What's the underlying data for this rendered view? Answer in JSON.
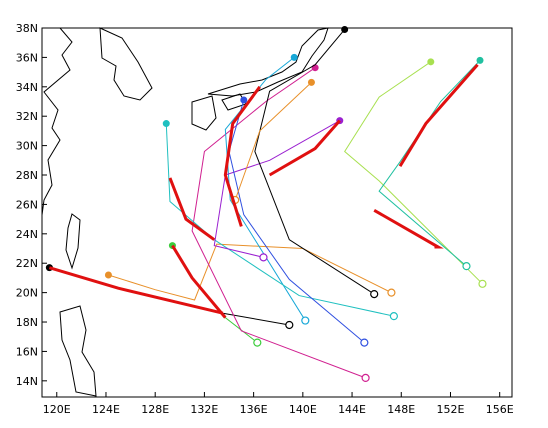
{
  "chart_data": {
    "type": "map",
    "xlim": [
      118.8,
      157
    ],
    "ylim": [
      12.9,
      38
    ],
    "xticks": [
      {
        "value": 120,
        "label": "120E"
      },
      {
        "value": 124,
        "label": "124E"
      },
      {
        "value": 128,
        "label": "128E"
      },
      {
        "value": 132,
        "label": "132E"
      },
      {
        "value": 136,
        "label": "136E"
      },
      {
        "value": 140,
        "label": "140E"
      },
      {
        "value": 144,
        "label": "144E"
      },
      {
        "value": 148,
        "label": "148E"
      },
      {
        "value": 152,
        "label": "152E"
      },
      {
        "value": 156,
        "label": "156E"
      }
    ],
    "yticks": [
      {
        "value": 14,
        "label": "14N"
      },
      {
        "value": 16,
        "label": "16N"
      },
      {
        "value": 18,
        "label": "18N"
      },
      {
        "value": 20,
        "label": "20N"
      },
      {
        "value": 22,
        "label": "22N"
      },
      {
        "value": 24,
        "label": "24N"
      },
      {
        "value": 26,
        "label": "26N"
      },
      {
        "value": 28,
        "label": "28N"
      },
      {
        "value": 30,
        "label": "30N"
      },
      {
        "value": 32,
        "label": "32N"
      },
      {
        "value": 34,
        "label": "34N"
      },
      {
        "value": 36,
        "label": "36N"
      },
      {
        "value": 38,
        "label": "38N"
      }
    ],
    "series": [
      {
        "color": "#000000",
        "x": [
          138.9,
          133.5,
          130,
          125,
          119.4
        ],
        "y": [
          17.8,
          18.6,
          19.3,
          20.3,
          21.7
        ]
      },
      {
        "color": "#e8902a",
        "x": [
          147.2,
          140,
          133,
          131.2,
          128,
          124.2
        ],
        "y": [
          20.0,
          23.0,
          23.3,
          19.5,
          20.2,
          21.2
        ]
      },
      {
        "color": "#3ccc3c",
        "x": [
          136.3,
          133.7,
          131,
          129.4
        ],
        "y": [
          16.6,
          18.3,
          21.0,
          23.2
        ]
      },
      {
        "color": "#d02090",
        "x": [
          145.1,
          135,
          131,
          132,
          137,
          141
        ],
        "y": [
          14.2,
          17.4,
          24.2,
          29.6,
          33.0,
          35.3
        ]
      },
      {
        "color": "#18a8d8",
        "x": [
          140.2,
          134.1,
          133.7,
          137,
          139.3
        ],
        "y": [
          18.1,
          26.3,
          31.1,
          34.5,
          36.0
        ]
      },
      {
        "color": "#20c0c0",
        "x": [
          147.4,
          139.7,
          132.8,
          129.2,
          128.9
        ],
        "y": [
          18.4,
          19.8,
          23.6,
          26.2,
          31.5
        ]
      },
      {
        "color": "#9a20d0",
        "x": [
          136.8,
          132.8,
          133.7,
          137.3,
          143
        ],
        "y": [
          22.4,
          23.2,
          28.0,
          29.0,
          31.7
        ]
      },
      {
        "color": "#3050e0",
        "x": [
          145,
          138.9,
          135.2,
          134,
          135.2
        ],
        "y": [
          16.6,
          20.9,
          25.3,
          29.6,
          33.1
        ]
      },
      {
        "color": "#000000",
        "x": [
          145.8,
          138.9,
          136.1,
          137.3,
          141,
          143.4
        ],
        "y": [
          19.9,
          23.6,
          29.6,
          33.7,
          35.5,
          37.9
        ]
      },
      {
        "color": "#e8902a",
        "x": [
          134.5,
          136.5,
          140.7
        ],
        "y": [
          26.3,
          31.0,
          34.3
        ]
      },
      {
        "color": "#a8e050",
        "x": [
          154.6,
          146.2,
          143.4,
          146.2,
          150.4
        ],
        "y": [
          20.6,
          27.6,
          29.6,
          33.3,
          35.7
        ]
      },
      {
        "color": "#20c0a0",
        "x": [
          153.3,
          146.2,
          147.9,
          151.2,
          154.4
        ],
        "y": [
          21.8,
          26.9,
          28.9,
          33.0,
          35.8
        ]
      },
      {
        "color": "#e01010",
        "width": 3,
        "x": [
          133.5,
          130,
          125,
          119.4
        ],
        "y": [
          18.6,
          19.3,
          20.3,
          21.7
        ]
      },
      {
        "color": "#e01010",
        "width": 3,
        "x": [
          133.7,
          131,
          129.4
        ],
        "y": [
          18.3,
          21.0,
          23.2
        ]
      },
      {
        "color": "#e01010",
        "width": 3,
        "x": [
          132.8,
          130.5,
          129.2
        ],
        "y": [
          23.6,
          25.0,
          27.8
        ]
      },
      {
        "color": "#e01010",
        "width": 3,
        "x": [
          135,
          133.7,
          134.3,
          136.5
        ],
        "y": [
          24.5,
          28.0,
          31.5,
          34.0
        ]
      },
      {
        "color": "#e01010",
        "width": 3,
        "x": [
          137.3,
          141,
          143
        ],
        "y": [
          28.0,
          29.8,
          31.7
        ]
      },
      {
        "color": "#e01010",
        "width": 3,
        "x": [
          145.8,
          151,
          150.7
        ],
        "y": [
          25.6,
          23.1,
          23.1
        ]
      },
      {
        "color": "#e01010",
        "width": 3,
        "x": [
          147.9,
          150,
          154.2
        ],
        "y": [
          28.6,
          31.5,
          35.5
        ]
      }
    ]
  }
}
